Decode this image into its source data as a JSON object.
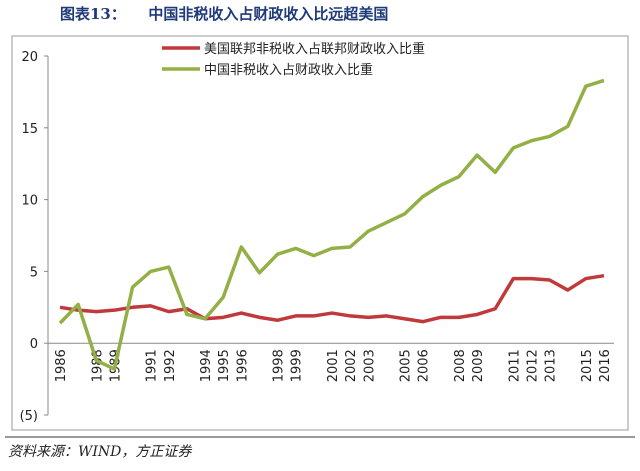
{
  "chart_data": {
    "type": "line",
    "title": "图表13：　　中国非税收入占财政收入比远超美国",
    "source": "资料来源：WIND，方正证券",
    "categories": [
      "1986",
      null,
      "1988",
      "1989",
      null,
      "1991",
      "1992",
      null,
      "1994",
      "1995",
      "1996",
      null,
      "1998",
      "1999",
      null,
      "2001",
      "2002",
      "2003",
      null,
      "2005",
      "2006",
      null,
      "2008",
      "2009",
      null,
      "2011",
      "2012",
      "2013",
      null,
      "2015",
      "2016"
    ],
    "series": [
      {
        "name": "美国联邦非税收入占联邦财政收入比重",
        "color": "#c0393b",
        "values": [
          2.5,
          2.3,
          2.2,
          2.3,
          2.5,
          2.6,
          2.2,
          2.4,
          1.7,
          1.8,
          2.1,
          1.8,
          1.6,
          1.9,
          1.9,
          2.1,
          1.9,
          1.8,
          1.9,
          1.7,
          1.5,
          1.8,
          1.8,
          2.0,
          2.4,
          4.5,
          4.5,
          4.4,
          3.7,
          4.5,
          4.7
        ]
      },
      {
        "name": "中国非税收入占财政收入比重",
        "color": "#92b045",
        "values": [
          1.4,
          2.7,
          -1.2,
          -1.8,
          3.9,
          5.0,
          5.3,
          2.0,
          1.7,
          3.2,
          6.7,
          4.9,
          6.2,
          6.6,
          6.1,
          6.6,
          6.7,
          7.8,
          8.4,
          9.0,
          10.2,
          11.0,
          11.6,
          13.1,
          11.9,
          13.6,
          14.1,
          14.4,
          15.1,
          17.9,
          18.3
        ]
      }
    ],
    "ylim": [
      -5,
      20
    ],
    "yticks": [
      {
        "value": -5,
        "label": "(5)"
      },
      0,
      5,
      10,
      15,
      20
    ]
  }
}
